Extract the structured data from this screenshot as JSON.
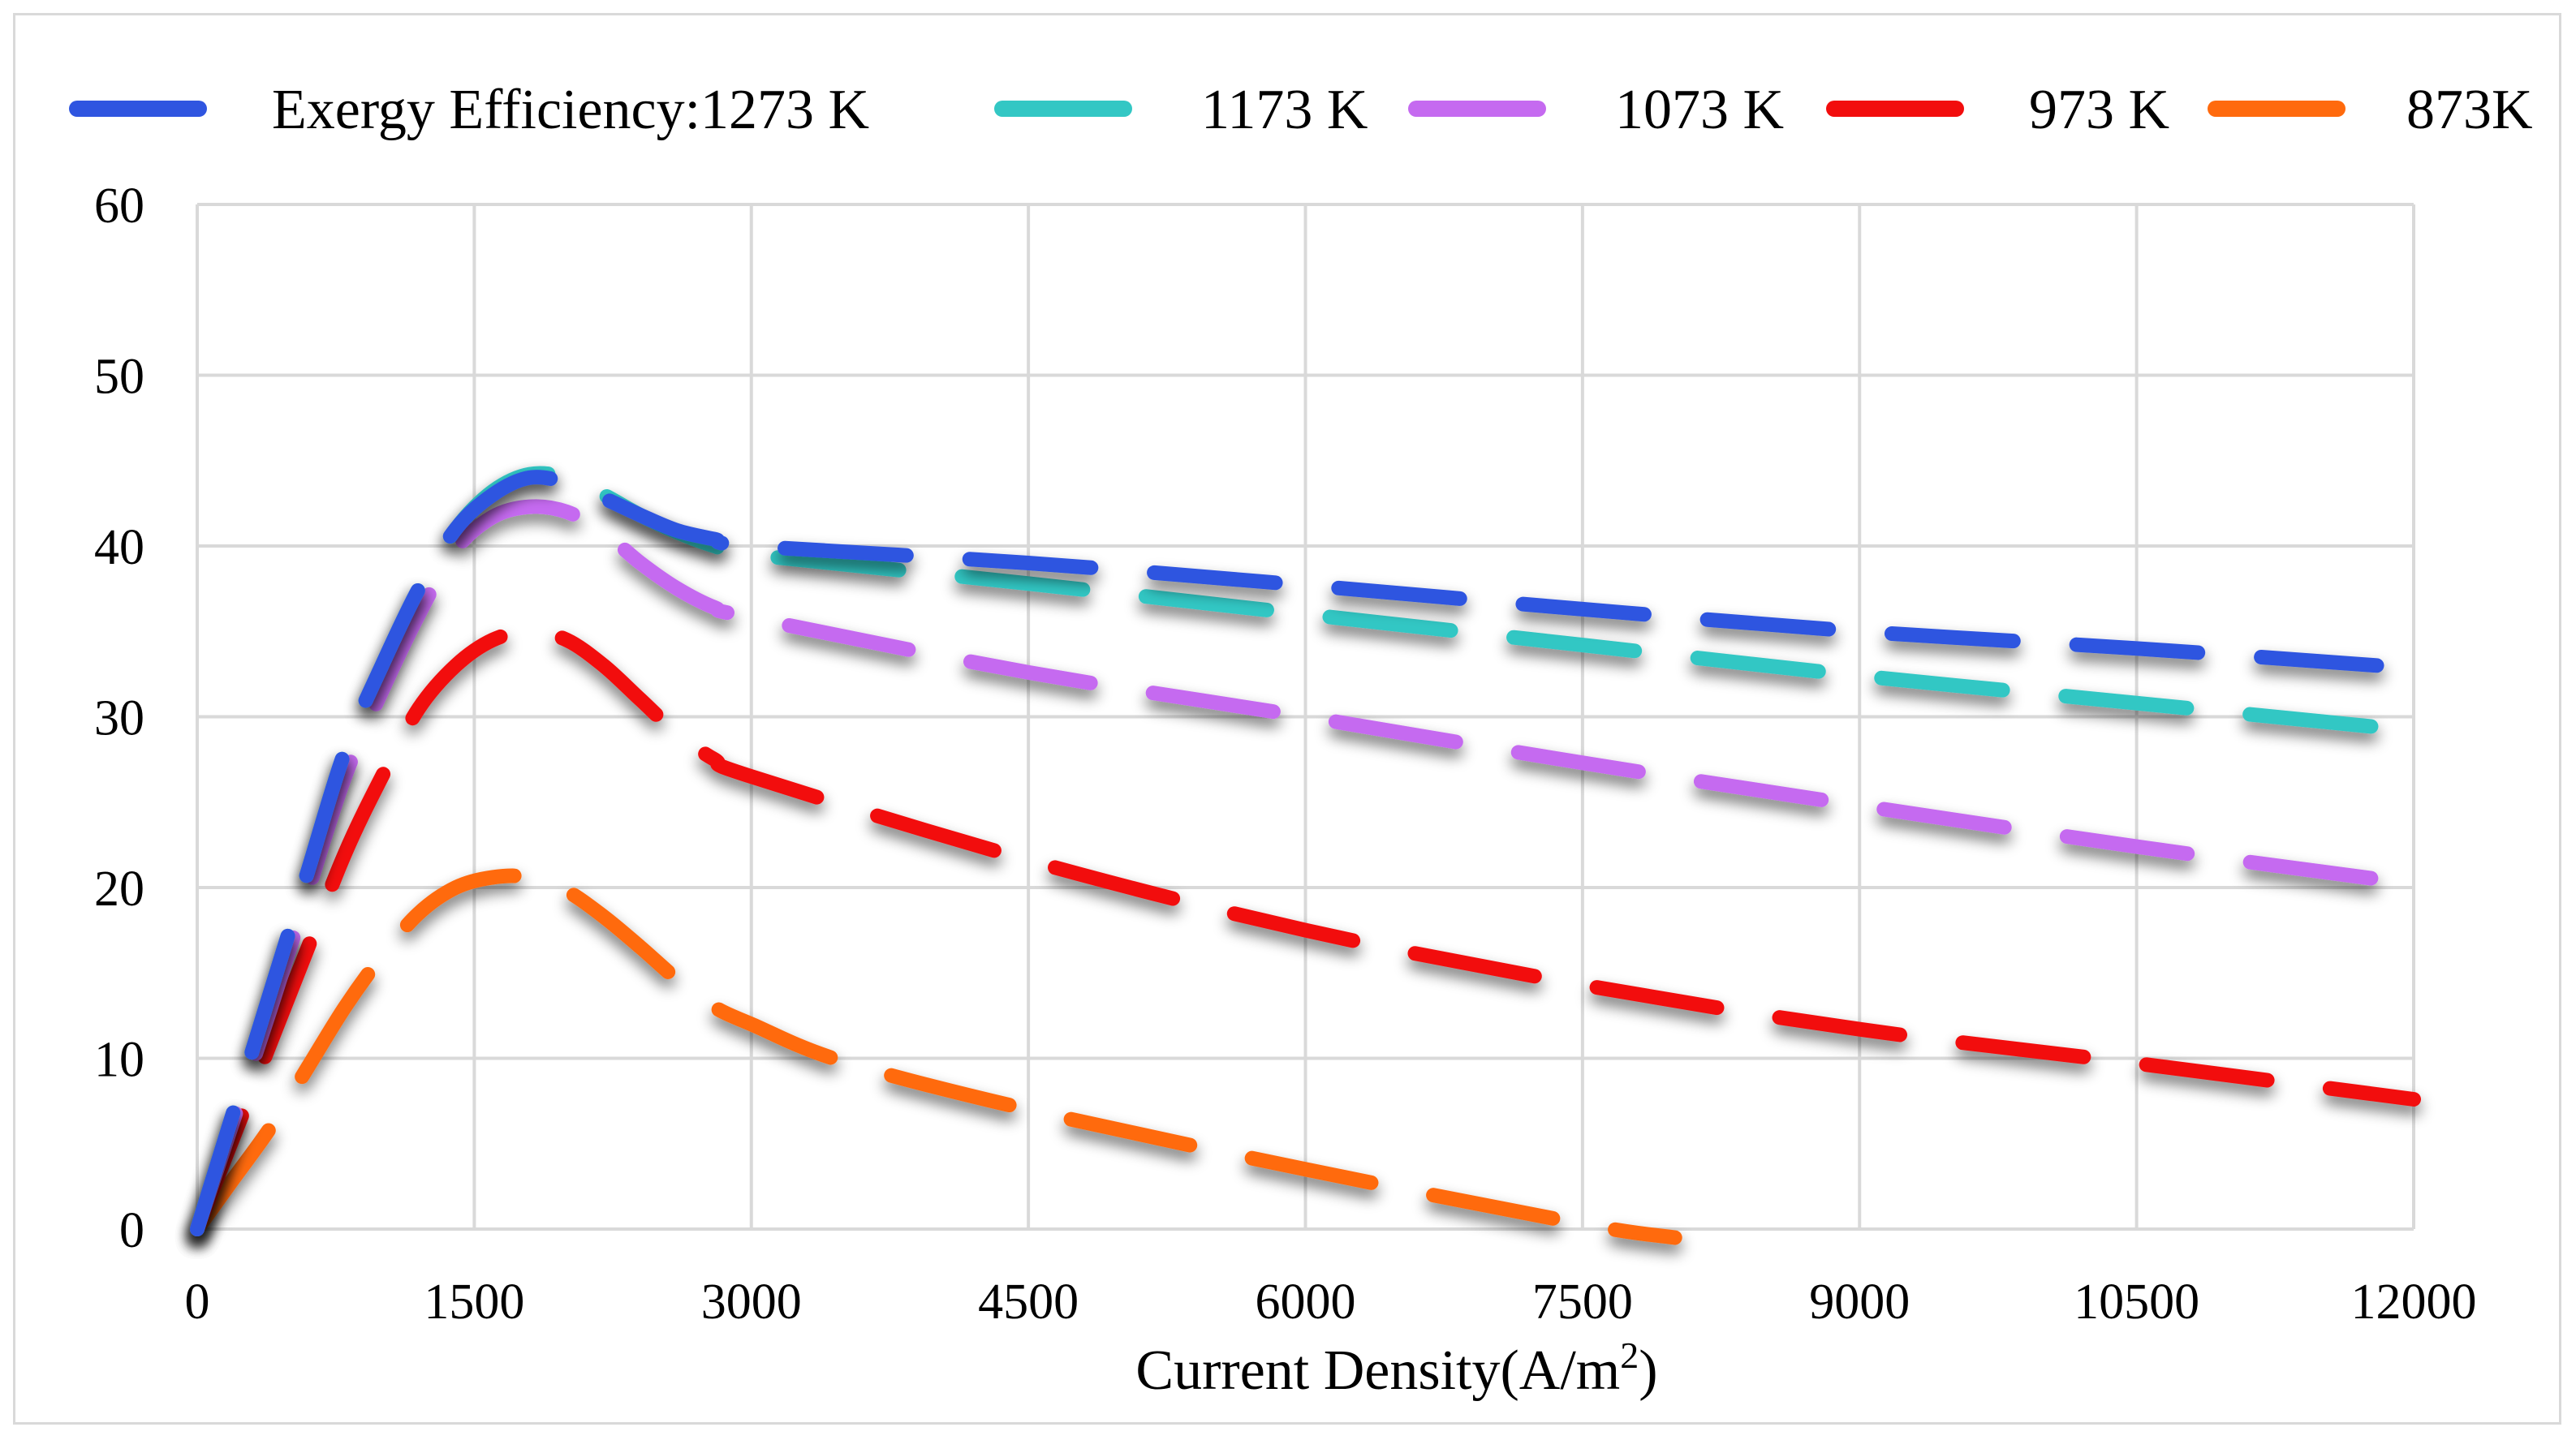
{
  "chart_data": {
    "type": "line",
    "title": "",
    "xlabel": "Current Density(A/m",
    "xlabel_superscript": "2",
    "xlabel_close": ")",
    "ylabel": "",
    "xlim": [
      0,
      12000
    ],
    "ylim": [
      0,
      60
    ],
    "x_ticks": [
      0,
      1500,
      3000,
      4500,
      6000,
      7500,
      9000,
      10500,
      12000
    ],
    "y_ticks": [
      0,
      10,
      20,
      30,
      40,
      50,
      60
    ],
    "grid": true,
    "legend_position": "top",
    "line_style": "dashed",
    "series": [
      {
        "name": "Exergy Efficiency:1273 K",
        "color": "#2f55e0",
        "x": [
          0,
          200,
          400,
          600,
          800,
          1000,
          1200,
          1400,
          1600,
          1800,
          2000,
          2200,
          2400,
          2600,
          2800,
          3000,
          4500,
          6000,
          7500,
          9000,
          10500,
          11800
        ],
        "y": [
          0,
          7,
          14,
          21,
          28,
          33,
          37.5,
          41,
          43,
          44,
          43.7,
          42.8,
          41.8,
          40.9,
          40.4,
          40,
          39,
          37.7,
          36.3,
          35,
          34,
          33
        ]
      },
      {
        "name": "1173 K",
        "color": "#33c7c4",
        "x": [
          0,
          200,
          400,
          600,
          800,
          1000,
          1200,
          1400,
          1600,
          1800,
          2000,
          2200,
          2400,
          2600,
          2800,
          3000,
          4500,
          6000,
          7500,
          9000,
          10500,
          11800
        ],
        "y": [
          0,
          7,
          14,
          21,
          28,
          33,
          37.5,
          41,
          43.2,
          44.2,
          44,
          43,
          41.8,
          40.8,
          40,
          39.5,
          37.8,
          36,
          34.2,
          32.4,
          30.8,
          29.4
        ]
      },
      {
        "name": "1073 K",
        "color": "#c56af0",
        "x": [
          0,
          200,
          400,
          600,
          800,
          1000,
          1200,
          1400,
          1600,
          1800,
          2000,
          2200,
          2400,
          2600,
          2800,
          3000,
          4500,
          6000,
          7500,
          9000,
          10500,
          11800
        ],
        "y": [
          0,
          6.5,
          13,
          19.8,
          26.5,
          31.5,
          36,
          39.8,
          41.7,
          42.3,
          42,
          40.8,
          39,
          37.5,
          36.4,
          35.8,
          32.6,
          30,
          27.3,
          24.8,
          22.4,
          20.5
        ]
      },
      {
        "name": "973 K",
        "color": "#f20d0d",
        "x": [
          0,
          200,
          400,
          600,
          800,
          1000,
          1200,
          1400,
          1600,
          1800,
          2000,
          2200,
          2400,
          2600,
          2800,
          3000,
          4500,
          6000,
          7500,
          9000,
          10500,
          12000
        ],
        "y": [
          0,
          5.5,
          11,
          16.5,
          22,
          26.5,
          30.5,
          33,
          34.5,
          35,
          34.5,
          33,
          31,
          29,
          27.5,
          26.5,
          21.6,
          17.5,
          14.3,
          11.7,
          9.7,
          7.6
        ]
      },
      {
        "name": "873K",
        "color": "#ff6a0d",
        "x": [
          0,
          200,
          400,
          600,
          800,
          1000,
          1200,
          1400,
          1600,
          1800,
          2000,
          2200,
          2400,
          2600,
          2800,
          3000,
          3500,
          4500,
          6000,
          7500,
          8000
        ],
        "y": [
          0,
          3,
          6,
          9.5,
          13,
          16,
          18.5,
          20,
          20.6,
          20.6,
          19.8,
          18.3,
          16.5,
          14.6,
          13,
          12,
          9.8,
          7,
          3.5,
          0.3,
          -0.5
        ]
      }
    ]
  }
}
